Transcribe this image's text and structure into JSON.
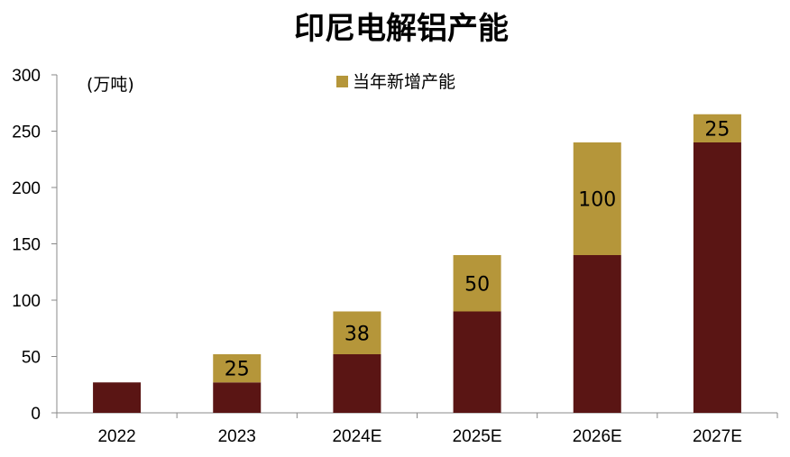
{
  "chart_data": {
    "type": "bar",
    "stacked": true,
    "title": "印尼电解铝产能",
    "unit_label": "(万吨)",
    "categories": [
      "2022",
      "2023",
      "2024E",
      "2025E",
      "2026E",
      "2027E"
    ],
    "series": [
      {
        "values": [
          27,
          27,
          52,
          90,
          140,
          240
        ],
        "color": "#5a1514"
      },
      {
        "name": "当年新增产能",
        "values": [
          0,
          25,
          38,
          50,
          100,
          25
        ],
        "color": "#b5963a"
      }
    ],
    "data_labels": [
      "",
      "25",
      "38",
      "50",
      "100",
      "25"
    ],
    "ylim": [
      0,
      300
    ],
    "yticks": [
      0,
      50,
      100,
      150,
      200,
      250,
      300
    ],
    "grid": false,
    "legend_position": "top-center"
  }
}
